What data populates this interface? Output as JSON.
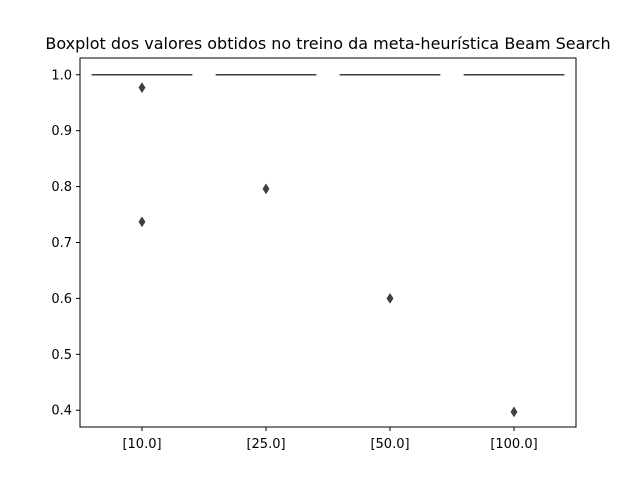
{
  "chart_data": {
    "type": "boxplot",
    "title": "Boxplot dos valores obtidos no treino da meta-heurística Beam Search",
    "xlabel": "",
    "ylabel": "",
    "categories": [
      "[10.0]",
      "[25.0]",
      "[50.0]",
      "[100.0]"
    ],
    "ylim": [
      0.37,
      1.03
    ],
    "yticks": [
      1.0,
      0.9,
      0.8,
      0.7,
      0.6,
      0.5,
      0.4
    ],
    "ytick_labels": [
      "1.0",
      "0.9",
      "0.8",
      "0.7",
      "0.6",
      "0.5",
      "0.4"
    ],
    "boxes": [
      {
        "category": "[10.0]",
        "q1": 1.0,
        "median": 1.0,
        "q3": 1.0,
        "whisker_low": 1.0,
        "whisker_high": 1.0,
        "outliers": [
          0.977,
          0.737
        ]
      },
      {
        "category": "[25.0]",
        "q1": 1.0,
        "median": 1.0,
        "q3": 1.0,
        "whisker_low": 1.0,
        "whisker_high": 1.0,
        "outliers": [
          0.796
        ]
      },
      {
        "category": "[50.0]",
        "q1": 1.0,
        "median": 1.0,
        "q3": 1.0,
        "whisker_low": 1.0,
        "whisker_high": 1.0,
        "outliers": [
          0.6
        ]
      },
      {
        "category": "[100.0]",
        "q1": 1.0,
        "median": 1.0,
        "q3": 1.0,
        "whisker_low": 1.0,
        "whisker_high": 1.0,
        "outliers": [
          0.397
        ]
      }
    ],
    "grid": false,
    "colors": {
      "box_line": "#3f3f3f",
      "outlier": "#3f3f3f",
      "axes": "#000000"
    }
  }
}
